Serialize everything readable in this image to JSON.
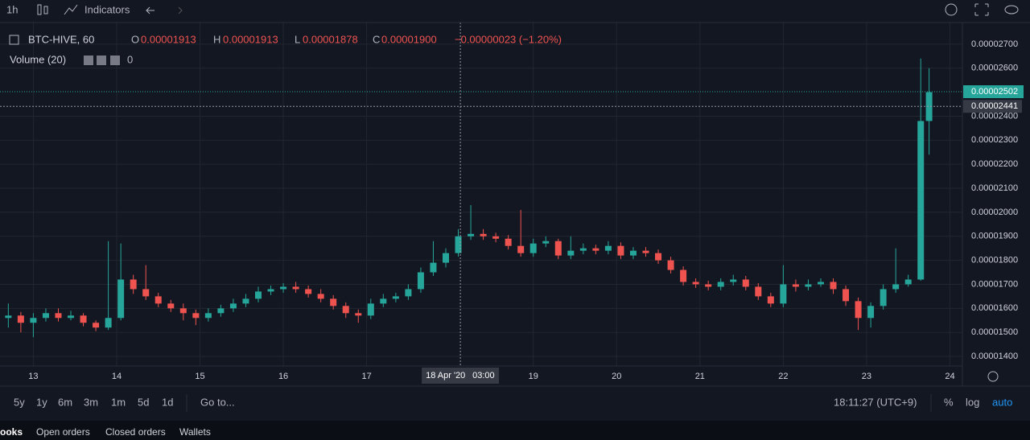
{
  "toolbar": {
    "interval": "1h",
    "indicators": "Indicators"
  },
  "legend": {
    "symbol": "BTC-HIVE, 60",
    "o": "O",
    "open": "0.00001913",
    "h": "H",
    "high": "0.00001913",
    "l": "L",
    "low": "0.00001878",
    "c": "C",
    "close": "0.00001900",
    "change": "−0.00000023 (−1.20%)",
    "volume": "Volume (20)",
    "volume_value": "0"
  },
  "chart_data": {
    "type": "candlestick",
    "up_color": "#26a69a",
    "down_color": "#ef5350",
    "x": [
      12.7,
      12.85,
      13.0,
      13.15,
      13.3,
      13.45,
      13.6,
      13.75,
      13.9,
      14.05,
      14.2,
      14.35,
      14.5,
      14.65,
      14.8,
      14.95,
      15.1,
      15.25,
      15.4,
      15.55,
      15.7,
      15.85,
      16.0,
      16.15,
      16.3,
      16.45,
      16.6,
      16.75,
      16.9,
      17.05,
      17.2,
      17.35,
      17.5,
      17.65,
      17.8,
      17.95,
      18.1,
      18.25,
      18.4,
      18.55,
      18.7,
      18.85,
      19.0,
      19.15,
      19.3,
      19.45,
      19.6,
      19.75,
      19.9,
      20.05,
      20.2,
      20.35,
      20.5,
      20.65,
      20.8,
      20.95,
      21.1,
      21.25,
      21.4,
      21.55,
      21.7,
      21.85,
      22.0,
      22.15,
      22.3,
      22.45,
      22.6,
      22.75,
      22.9,
      23.05,
      23.2,
      23.35,
      23.5,
      23.65,
      23.75
    ],
    "open": [
      1.56e-05,
      1.57e-05,
      1.54e-05,
      1.56e-05,
      1.58e-05,
      1.56e-05,
      1.57e-05,
      1.54e-05,
      1.52e-05,
      1.56e-05,
      1.72e-05,
      1.68e-05,
      1.65e-05,
      1.62e-05,
      1.6e-05,
      1.58e-05,
      1.56e-05,
      1.58e-05,
      1.6e-05,
      1.62e-05,
      1.64e-05,
      1.67e-05,
      1.68e-05,
      1.69e-05,
      1.68e-05,
      1.66e-05,
      1.64e-05,
      1.61e-05,
      1.58e-05,
      1.57e-05,
      1.62e-05,
      1.64e-05,
      1.65e-05,
      1.68e-05,
      1.75e-05,
      1.79e-05,
      1.83e-05,
      1.9e-05,
      1.91e-05,
      1.9e-05,
      1.89e-05,
      1.86e-05,
      1.83e-05,
      1.87e-05,
      1.88e-05,
      1.82e-05,
      1.84e-05,
      1.85e-05,
      1.84e-05,
      1.86e-05,
      1.82e-05,
      1.84e-05,
      1.83e-05,
      1.8e-05,
      1.76e-05,
      1.71e-05,
      1.7e-05,
      1.69e-05,
      1.71e-05,
      1.72e-05,
      1.69e-05,
      1.65e-05,
      1.62e-05,
      1.7e-05,
      1.69e-05,
      1.7e-05,
      1.71e-05,
      1.68e-05,
      1.63e-05,
      1.56e-05,
      1.61e-05,
      1.68e-05,
      1.7e-05,
      1.72e-05,
      2.38e-05
    ],
    "high": [
      1.62e-05,
      1.585e-05,
      1.58e-05,
      1.6e-05,
      1.6e-05,
      1.59e-05,
      1.58e-05,
      1.55e-05,
      1.88e-05,
      1.87e-05,
      1.74e-05,
      1.78e-05,
      1.665e-05,
      1.635e-05,
      1.62e-05,
      1.595e-05,
      1.6e-05,
      1.615e-05,
      1.64e-05,
      1.66e-05,
      1.69e-05,
      1.695e-05,
      1.705e-05,
      1.71e-05,
      1.695e-05,
      1.68e-05,
      1.655e-05,
      1.625e-05,
      1.595e-05,
      1.64e-05,
      1.66e-05,
      1.665e-05,
      1.7e-05,
      1.77e-05,
      1.88e-05,
      1.85e-05,
      1.93e-05,
      2.03e-05,
      1.93e-05,
      1.915e-05,
      1.905e-05,
      2.01e-05,
      1.89e-05,
      1.9e-05,
      1.89e-05,
      1.9e-05,
      1.87e-05,
      1.865e-05,
      1.88e-05,
      1.875e-05,
      1.855e-05,
      1.855e-05,
      1.845e-05,
      1.815e-05,
      1.775e-05,
      1.725e-05,
      1.715e-05,
      1.725e-05,
      1.74e-05,
      1.735e-05,
      1.705e-05,
      1.665e-05,
      1.78e-05,
      1.72e-05,
      1.72e-05,
      1.725e-05,
      1.725e-05,
      1.695e-05,
      1.645e-05,
      1.625e-05,
      1.7e-05,
      1.85e-05,
      1.74e-05,
      2.64e-05,
      2.6e-05
    ],
    "low": [
      1.52e-05,
      1.5e-05,
      1.48e-05,
      1.545e-05,
      1.545e-05,
      1.55e-05,
      1.525e-05,
      1.505e-05,
      1.51e-05,
      1.55e-05,
      1.66e-05,
      1.635e-05,
      1.605e-05,
      1.585e-05,
      1.55e-05,
      1.53e-05,
      1.545e-05,
      1.565e-05,
      1.585e-05,
      1.605e-05,
      1.625e-05,
      1.655e-05,
      1.665e-05,
      1.665e-05,
      1.645e-05,
      1.625e-05,
      1.595e-05,
      1.56e-05,
      1.54e-05,
      1.555e-05,
      1.605e-05,
      1.625e-05,
      1.635e-05,
      1.665e-05,
      1.735e-05,
      1.77e-05,
      1.815e-05,
      1.885e-05,
      1.885e-05,
      1.875e-05,
      1.845e-05,
      1.815e-05,
      1.815e-05,
      1.855e-05,
      1.805e-05,
      1.805e-05,
      1.825e-05,
      1.825e-05,
      1.825e-05,
      1.805e-05,
      1.805e-05,
      1.815e-05,
      1.785e-05,
      1.745e-05,
      1.695e-05,
      1.685e-05,
      1.675e-05,
      1.675e-05,
      1.695e-05,
      1.675e-05,
      1.635e-05,
      1.605e-05,
      1.605e-05,
      1.67e-05,
      1.675e-05,
      1.69e-05,
      1.66e-05,
      1.61e-05,
      1.51e-05,
      1.52e-05,
      1.595e-05,
      1.665e-05,
      1.69e-05,
      1.715e-05,
      2.24e-05
    ],
    "close": [
      1.57e-05,
      1.54e-05,
      1.56e-05,
      1.58e-05,
      1.56e-05,
      1.57e-05,
      1.54e-05,
      1.52e-05,
      1.56e-05,
      1.72e-05,
      1.68e-05,
      1.65e-05,
      1.62e-05,
      1.6e-05,
      1.58e-05,
      1.56e-05,
      1.58e-05,
      1.6e-05,
      1.62e-05,
      1.64e-05,
      1.67e-05,
      1.68e-05,
      1.69e-05,
      1.68e-05,
      1.66e-05,
      1.64e-05,
      1.61e-05,
      1.58e-05,
      1.57e-05,
      1.62e-05,
      1.64e-05,
      1.65e-05,
      1.68e-05,
      1.75e-05,
      1.79e-05,
      1.83e-05,
      1.9e-05,
      1.91e-05,
      1.9e-05,
      1.89e-05,
      1.86e-05,
      1.83e-05,
      1.87e-05,
      1.88e-05,
      1.82e-05,
      1.84e-05,
      1.85e-05,
      1.84e-05,
      1.86e-05,
      1.82e-05,
      1.84e-05,
      1.83e-05,
      1.8e-05,
      1.76e-05,
      1.71e-05,
      1.7e-05,
      1.69e-05,
      1.71e-05,
      1.72e-05,
      1.69e-05,
      1.65e-05,
      1.62e-05,
      1.7e-05,
      1.69e-05,
      1.7e-05,
      1.71e-05,
      1.68e-05,
      1.63e-05,
      1.56e-05,
      1.61e-05,
      1.68e-05,
      1.7e-05,
      1.72e-05,
      2.38e-05,
      2.5e-05
    ],
    "xlim": [
      12.6,
      24.15
    ],
    "ylim": [
      1.36e-05,
      2.79e-05
    ],
    "xticks": [
      13,
      14,
      15,
      16,
      17,
      19,
      20,
      21,
      22,
      23,
      24
    ],
    "yticks": [
      {
        "value": 1.4e-05,
        "label": "0.00001400"
      },
      {
        "value": 1.5e-05,
        "label": "0.00001500"
      },
      {
        "value": 1.6e-05,
        "label": "0.00001600"
      },
      {
        "value": 1.7e-05,
        "label": "0.00001700"
      },
      {
        "value": 1.8e-05,
        "label": "0.00001800"
      },
      {
        "value": 1.9e-05,
        "label": "0.00001900"
      },
      {
        "value": 2e-05,
        "label": "0.00002000"
      },
      {
        "value": 2.1e-05,
        "label": "0.00002100"
      },
      {
        "value": 2.2e-05,
        "label": "0.00002200"
      },
      {
        "value": 2.3e-05,
        "label": "0.00002300"
      },
      {
        "value": 2.4e-05,
        "label": "0.00002400"
      },
      {
        "value": 2.6e-05,
        "label": "0.00002600"
      },
      {
        "value": 2.7e-05,
        "label": "0.00002700"
      }
    ],
    "grid": true,
    "last_price": {
      "value": 2.502e-05,
      "color": "#26a69a"
    },
    "crosshair": {
      "x": 18.125,
      "y": 2.441e-05,
      "date_label": "18 Apr '20",
      "time_label": "03:00"
    }
  },
  "bottom_bar": {
    "periods": [
      "5y",
      "1y",
      "6m",
      "3m",
      "1m",
      "5d",
      "1d"
    ],
    "goto": "Go to...",
    "clock": "18:11:27 (UTC+9)",
    "percent": "%",
    "log": "log",
    "auto": "auto"
  },
  "tabs": [
    "ooks",
    "Open orders",
    "Closed orders",
    "Wallets"
  ]
}
